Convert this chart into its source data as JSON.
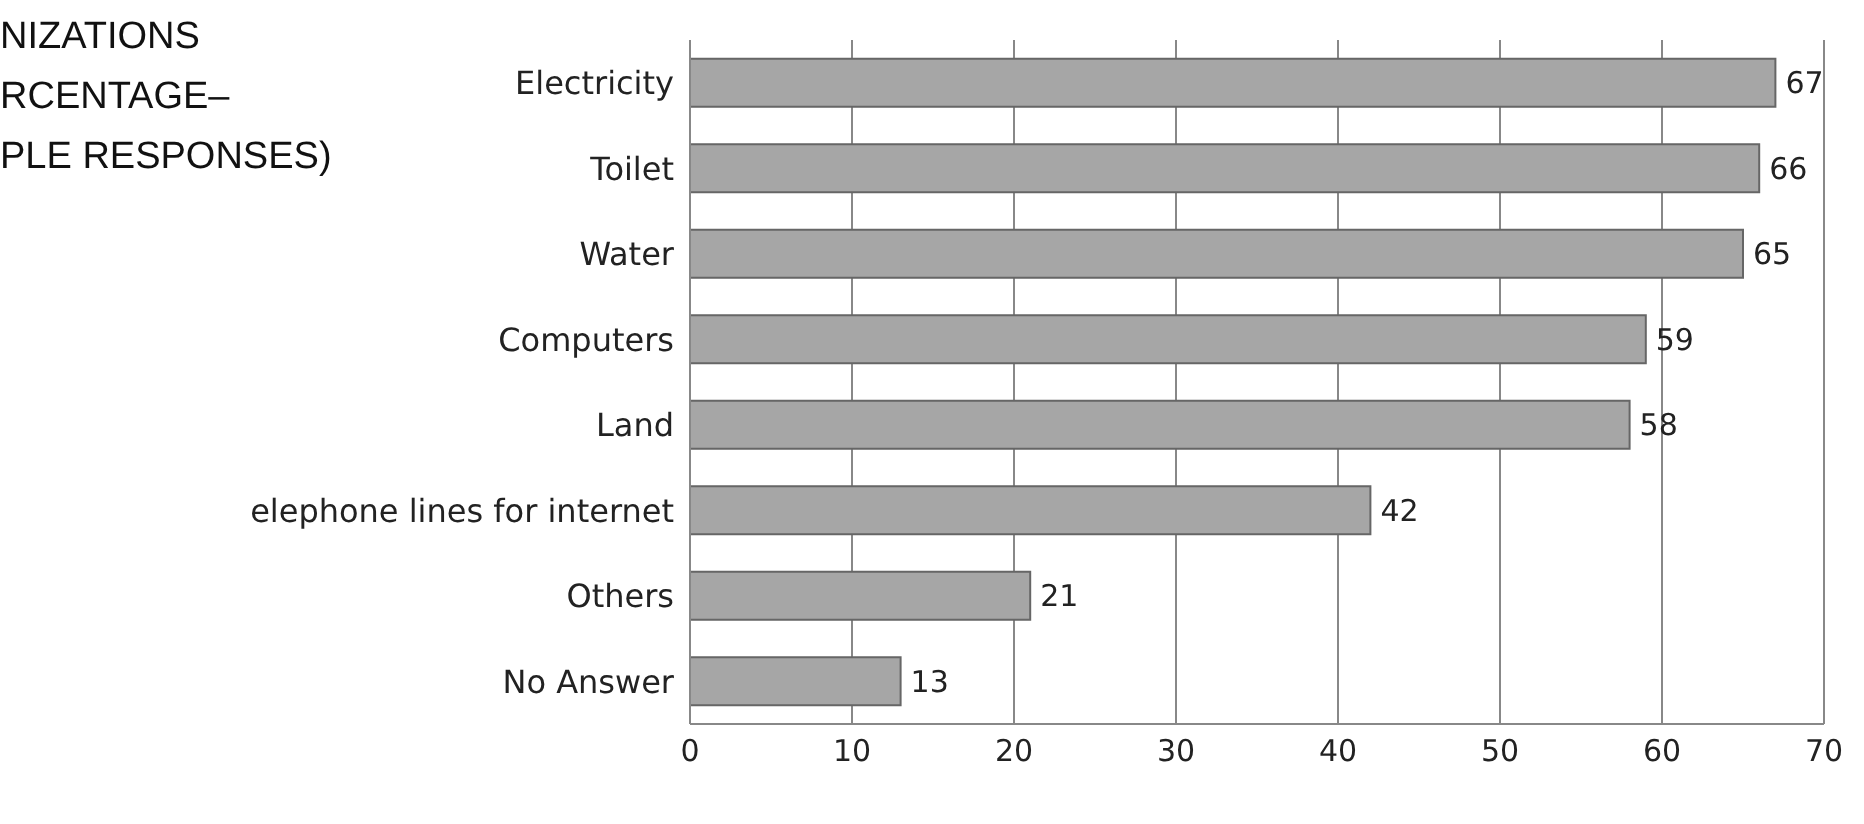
{
  "chart_data": {
    "type": "bar",
    "orientation": "horizontal",
    "title": "NIZATIONS\nRCENTAGE–\nPLE RESPONSES)",
    "categories": [
      "Electricity",
      "Toilet",
      "Water",
      "Computers",
      "Land",
      "elephone lines for internet",
      "Others",
      "No Answer"
    ],
    "values": [
      67,
      66,
      65,
      59,
      58,
      42,
      21,
      13
    ],
    "color": "#a6a6a6",
    "xlim": [
      0,
      70
    ],
    "xticks": [
      0,
      10,
      20,
      30,
      40,
      50,
      60,
      70
    ],
    "grid": "x",
    "data_labels": true
  }
}
